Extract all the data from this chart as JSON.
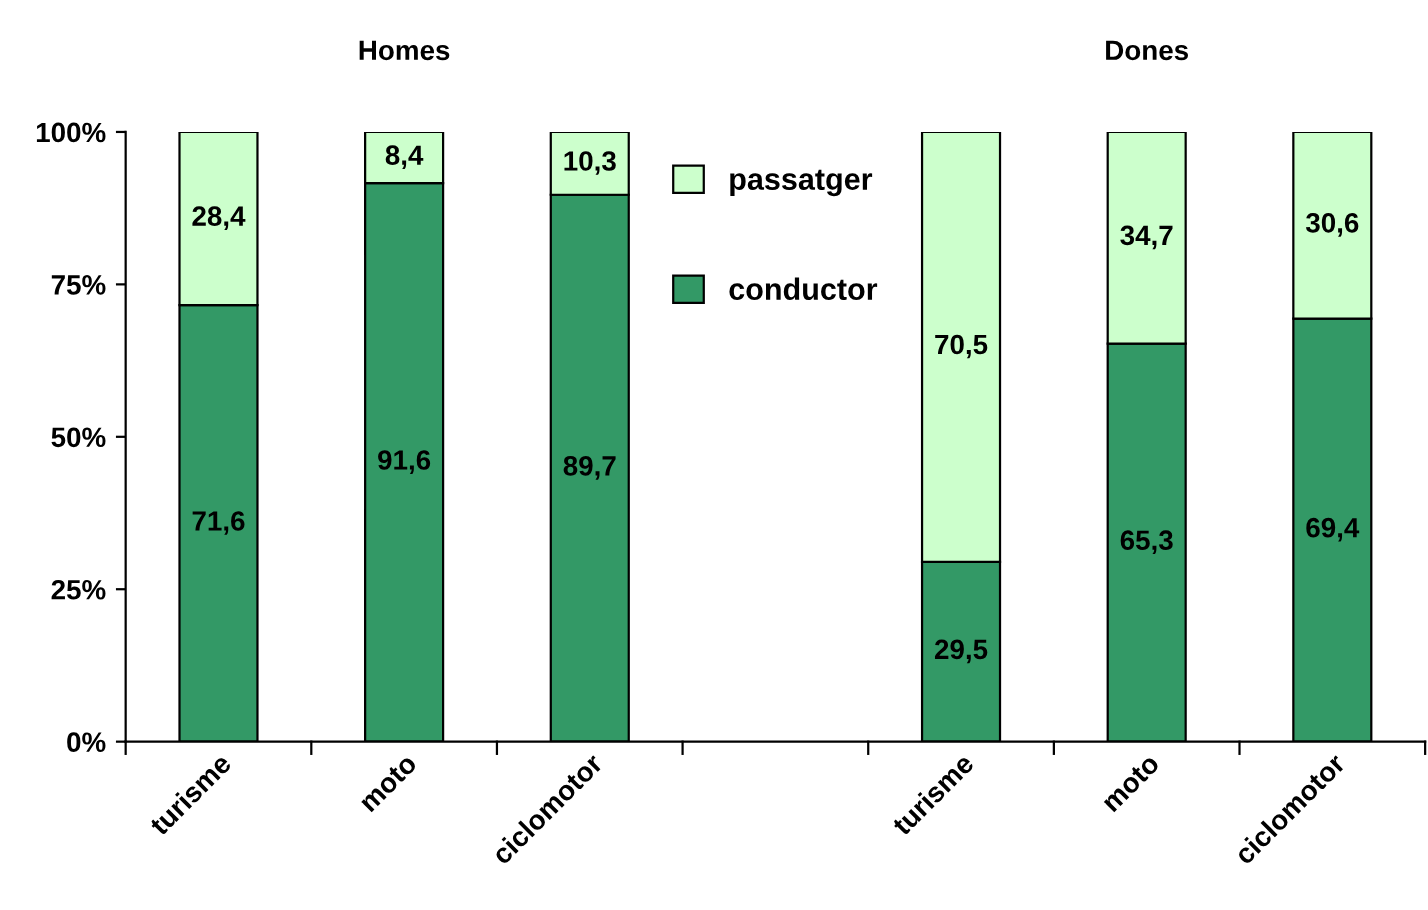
{
  "chart_data": {
    "type": "bar",
    "stacked": true,
    "annotations": [
      "Homes",
      "Dones"
    ],
    "categories": [
      "turisme",
      "moto",
      "ciclomotor",
      null,
      "turisme",
      "moto",
      "ciclomotor"
    ],
    "series": [
      {
        "name": "conductor",
        "color": "#339966",
        "values": [
          71.6,
          91.6,
          89.7,
          null,
          29.5,
          65.3,
          69.4
        ],
        "value_labels": [
          "71,6",
          "91,6",
          "89,7",
          null,
          "29,5",
          "65,3",
          "69,4"
        ]
      },
      {
        "name": "passatger",
        "color": "#ccffcc",
        "values": [
          28.4,
          8.4,
          10.3,
          null,
          70.5,
          34.7,
          30.6
        ],
        "value_labels": [
          "28,4",
          "8,4",
          "10,3",
          null,
          "70,5",
          "34,7",
          "30,6"
        ]
      }
    ],
    "ylim": [
      0,
      100
    ],
    "yticks": [
      {
        "value": 0,
        "label": "0%"
      },
      {
        "value": 25,
        "label": "25%"
      },
      {
        "value": 50,
        "label": "50%"
      },
      {
        "value": 75,
        "label": "75%"
      },
      {
        "value": 100,
        "label": "100%"
      }
    ],
    "legend": "top",
    "grid": false
  }
}
